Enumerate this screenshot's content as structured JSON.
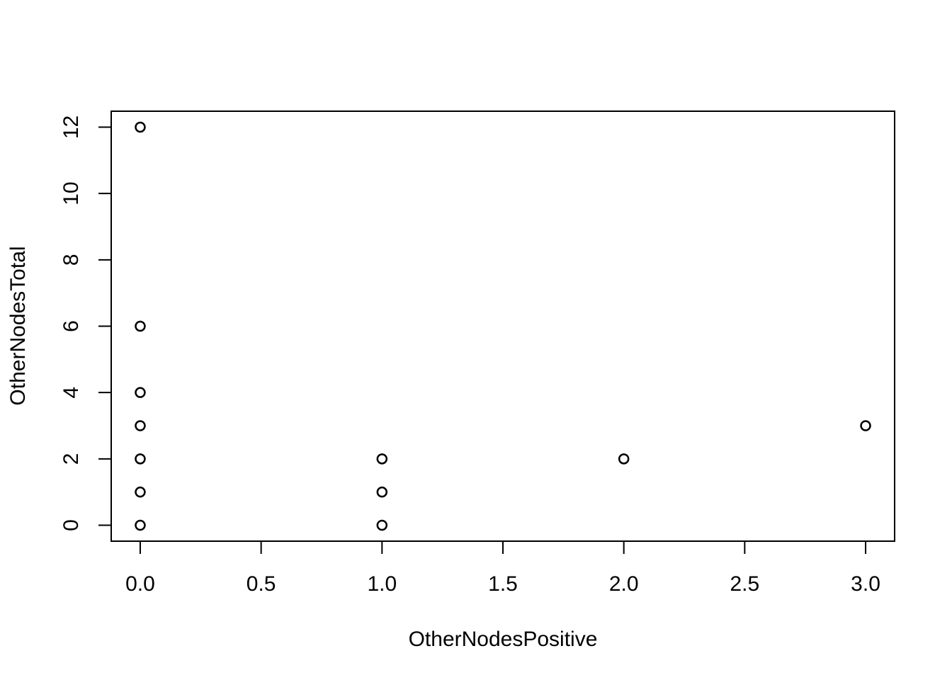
{
  "chart_data": {
    "type": "scatter",
    "title": "",
    "xlabel": "OtherNodesPositive",
    "ylabel": "OtherNodesTotal",
    "xlim": [
      -0.12,
      3.12
    ],
    "ylim": [
      -0.48,
      12.48
    ],
    "x_ticks": [
      0.0,
      0.5,
      1.0,
      1.5,
      2.0,
      2.5,
      3.0
    ],
    "x_tick_labels": [
      "0.0",
      "0.5",
      "1.0",
      "1.5",
      "2.0",
      "2.5",
      "3.0"
    ],
    "y_ticks": [
      0,
      2,
      4,
      6,
      8,
      10,
      12
    ],
    "y_tick_labels": [
      "0",
      "2",
      "4",
      "6",
      "8",
      "10",
      "12"
    ],
    "grid": false,
    "legend": "none",
    "points": [
      {
        "x": 0,
        "y": 12
      },
      {
        "x": 0,
        "y": 6
      },
      {
        "x": 0,
        "y": 4
      },
      {
        "x": 0,
        "y": 3
      },
      {
        "x": 0,
        "y": 2
      },
      {
        "x": 0,
        "y": 1
      },
      {
        "x": 0,
        "y": 0
      },
      {
        "x": 1,
        "y": 2
      },
      {
        "x": 1,
        "y": 1
      },
      {
        "x": 1,
        "y": 0
      },
      {
        "x": 2,
        "y": 2
      },
      {
        "x": 3,
        "y": 3
      }
    ],
    "marker": "open-circle",
    "color": "#000000"
  }
}
